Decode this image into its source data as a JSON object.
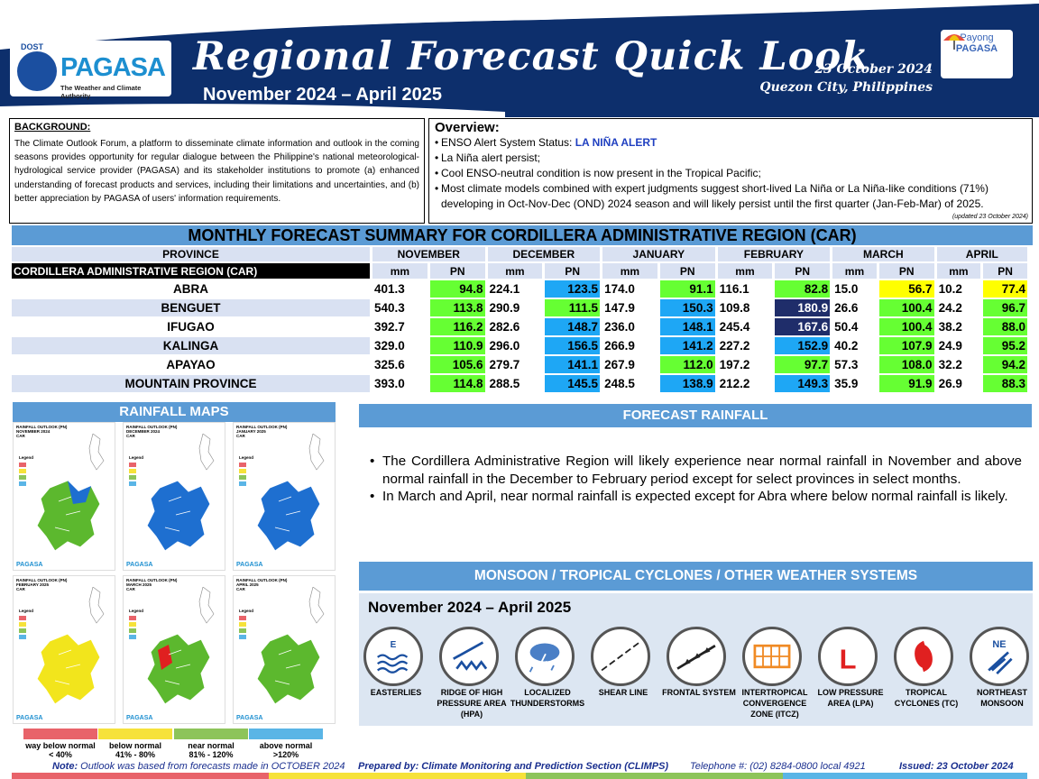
{
  "header": {
    "agency_top": "DOST",
    "agency": "PAGASA",
    "agency_sub": "The Weather and Climate Authority",
    "title": "Regional Forecast Quick Look",
    "period": "November 2024 – April 2025",
    "date": "23 October 2024",
    "location": "Quezon City, Philippines",
    "payong_1": "Payong",
    "payong_2": "PAGASA"
  },
  "background": {
    "title": "BACKGROUND:",
    "text": "The Climate Outlook Forum, a platform to disseminate climate information and outlook in the coming seasons provides opportunity for regular dialogue between the Philippine's national meteorological-hydrological service provider (PAGASA) and its stakeholder institutions to promote (a) enhanced understanding of forecast products and services, including their limitations and uncertainties, and (b) better appreciation by PAGASA of users' information requirements."
  },
  "overview": {
    "title": "Overview:",
    "status_label": "ENSO Alert System Status: ",
    "status_value": "LA NIÑA ALERT",
    "items": [
      "La Niña alert persist;",
      "Cool ENSO-neutral condition is now present in the Tropical Pacific;",
      "Most climate models combined with expert judgments suggest short-lived La Niña or La Niña-like conditions (71%) developing in Oct-Nov-Dec (OND) 2024 season and will likely persist until the first quarter (Jan-Feb-Mar) of 2025."
    ],
    "updated": "(updated 23 October 2024)"
  },
  "summary": {
    "title": "MONTHLY FORECAST SUMMARY FOR CORDILLERA ADMINISTRATIVE REGION (CAR)",
    "province_header": "PROVINCE",
    "region_label": "CORDILLERA ADMINISTRATIVE REGION (CAR)",
    "months": [
      "NOVEMBER",
      "DECEMBER",
      "JANUARY",
      "FEBRUARY",
      "MARCH",
      "APRIL"
    ],
    "mm_label": "mm",
    "pn_label": "PN",
    "rows": [
      {
        "province": "ABRA",
        "values": [
          [
            "401.3",
            "94.8",
            "g"
          ],
          [
            "224.1",
            "123.5",
            "b"
          ],
          [
            "174.0",
            "91.1",
            "g"
          ],
          [
            "116.1",
            "82.8",
            "g"
          ],
          [
            "15.0",
            "56.7",
            "y"
          ],
          [
            "10.2",
            "77.4",
            "y"
          ]
        ]
      },
      {
        "province": "BENGUET",
        "values": [
          [
            "540.3",
            "113.8",
            "g"
          ],
          [
            "290.9",
            "111.5",
            "g"
          ],
          [
            "147.9",
            "150.3",
            "b"
          ],
          [
            "109.8",
            "180.9",
            "d"
          ],
          [
            "26.6",
            "100.4",
            "g"
          ],
          [
            "24.2",
            "96.7",
            "g"
          ]
        ]
      },
      {
        "province": "IFUGAO",
        "values": [
          [
            "392.7",
            "116.2",
            "g"
          ],
          [
            "282.6",
            "148.7",
            "b"
          ],
          [
            "236.0",
            "148.1",
            "b"
          ],
          [
            "245.4",
            "167.6",
            "d"
          ],
          [
            "50.4",
            "100.4",
            "g"
          ],
          [
            "38.2",
            "88.0",
            "g"
          ]
        ]
      },
      {
        "province": "KALINGA",
        "values": [
          [
            "329.0",
            "110.9",
            "g"
          ],
          [
            "296.0",
            "156.5",
            "b"
          ],
          [
            "266.9",
            "141.2",
            "b"
          ],
          [
            "227.2",
            "152.9",
            "b"
          ],
          [
            "40.2",
            "107.9",
            "g"
          ],
          [
            "24.9",
            "95.2",
            "g"
          ]
        ]
      },
      {
        "province": "APAYAO",
        "values": [
          [
            "325.6",
            "105.6",
            "g"
          ],
          [
            "279.7",
            "141.1",
            "b"
          ],
          [
            "267.9",
            "112.0",
            "g"
          ],
          [
            "197.2",
            "97.7",
            "g"
          ],
          [
            "57.3",
            "108.0",
            "g"
          ],
          [
            "32.2",
            "94.2",
            "g"
          ]
        ]
      },
      {
        "province": "MOUNTAIN PROVINCE",
        "values": [
          [
            "393.0",
            "114.8",
            "g"
          ],
          [
            "288.5",
            "145.5",
            "b"
          ],
          [
            "248.5",
            "138.9",
            "b"
          ],
          [
            "212.2",
            "149.3",
            "b"
          ],
          [
            "35.9",
            "91.9",
            "g"
          ],
          [
            "26.9",
            "88.3",
            "g"
          ]
        ]
      }
    ]
  },
  "rainfall_maps": {
    "title": "RAINFALL MAPS",
    "maps": [
      {
        "label": "RAINFALL OUTLOOK (PN)",
        "month": "NOVEMBER 2024",
        "fill": "#5cb82e"
      },
      {
        "label": "RAINFALL OUTLOOK (PN)",
        "month": "DECEMBER 2024",
        "fill": "#1e6fd0"
      },
      {
        "label": "RAINFALL OUTLOOK (PN)",
        "month": "JANUARY 2025",
        "fill": "#1e6fd0"
      },
      {
        "label": "RAINFALL OUTLOOK (PN)",
        "month": "FEBRUARY 2025",
        "fill": "#f2e51c"
      },
      {
        "label": "RAINFALL OUTLOOK (PN)",
        "month": "MARCH 2025",
        "fill": "#5cb82e"
      },
      {
        "label": "RAINFALL OUTLOOK (PN)",
        "month": "APRIL 2025",
        "fill": "#5cb82e"
      }
    ],
    "region_code": "CAR",
    "legend_title": "Legend",
    "legend": [
      {
        "name": "way below normal",
        "range": "< 40%",
        "color": "#e8636a"
      },
      {
        "name": "below normal",
        "range": "41% - 80%",
        "color": "#f6e23a"
      },
      {
        "name": "near normal",
        "range": "81% - 120%",
        "color": "#8dc45a"
      },
      {
        "name": "above normal",
        "range": ">120%",
        "color": "#5ab5e6"
      }
    ]
  },
  "forecast_rainfall": {
    "title": "FORECAST RAINFALL",
    "bullets": [
      "The Cordillera Administrative Region will likely experience near normal rainfall in November and above normal rainfall in the December to February period except for select provinces in select months.",
      "In March and April, near normal rainfall is expected except for Abra where below normal rainfall is likely."
    ]
  },
  "monsoon": {
    "title": "MONSOON / TROPICAL CYCLONES / OTHER WEATHER SYSTEMS",
    "period": "November 2024 – April 2025",
    "systems": [
      {
        "label": "EASTERLIES",
        "icon": "easterlies-icon",
        "glyph": "E"
      },
      {
        "label": "RIDGE OF HIGH PRESSURE AREA (HPA)",
        "icon": "ridge-icon",
        "glyph": ""
      },
      {
        "label": "LOCALIZED THUNDERSTORMS",
        "icon": "thunderstorm-icon",
        "glyph": ""
      },
      {
        "label": "SHEAR LINE",
        "icon": "shear-line-icon",
        "glyph": ""
      },
      {
        "label": "FRONTAL SYSTEM",
        "icon": "frontal-system-icon",
        "glyph": ""
      },
      {
        "label": "INTERTROPICAL CONVERGENCE ZONE (ITCZ)",
        "icon": "itcz-icon",
        "glyph": ""
      },
      {
        "label": "LOW PRESSURE AREA (LPA)",
        "icon": "low-pressure-icon",
        "glyph": "L"
      },
      {
        "label": "TROPICAL CYCLONES (TC)",
        "icon": "cyclone-icon",
        "glyph": ""
      },
      {
        "label": "NORTHEAST MONSOON",
        "icon": "northeast-monsoon-icon",
        "glyph": "NE"
      }
    ]
  },
  "footer": {
    "note_label": "Note:",
    "note": "Outlook was based from forecasts made in OCTOBER 2024",
    "prepared": "Prepared by: Climate Monitoring and Prediction Section (CLIMPS)",
    "phone": "Telephone #: (02) 8284-0800 local 4921",
    "issued": "Issued: 23 October 2024"
  }
}
